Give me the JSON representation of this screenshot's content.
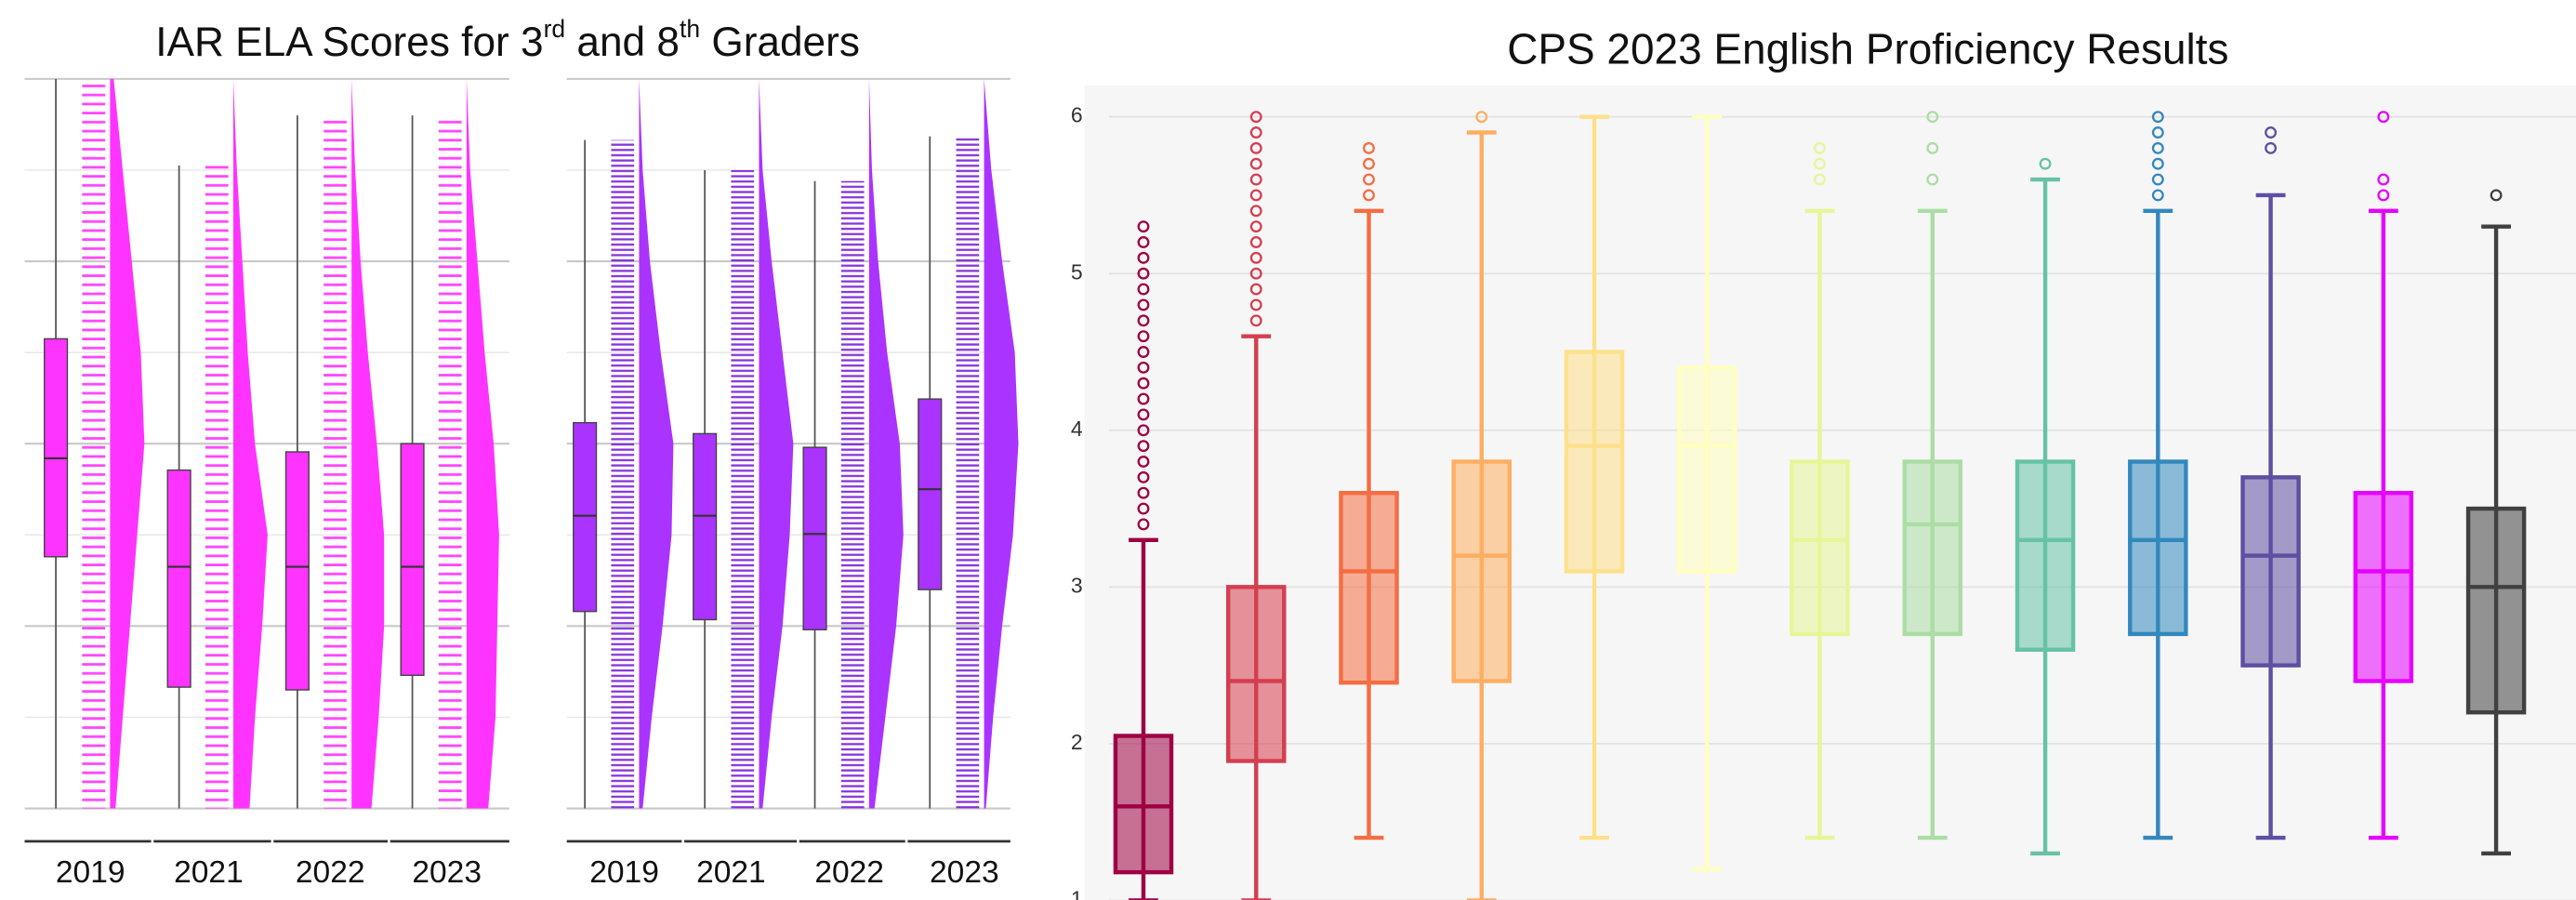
{
  "chart_data": [
    {
      "type": "raincloud",
      "title_runs": [
        {
          "text": "IAR ELA Scores for 3",
          "sup": false
        },
        {
          "text": "rd",
          "sup": true
        },
        {
          "text": " and 8",
          "sup": false
        },
        {
          "text": "th",
          "sup": true
        },
        {
          "text": " Graders",
          "sup": false
        }
      ],
      "categories": [
        "2019",
        "2021",
        "2022",
        "2023"
      ],
      "ylim": [
        0,
        8
      ],
      "yticks": [
        0,
        1,
        2,
        3,
        4,
        5,
        6,
        7,
        8
      ],
      "grid": true,
      "panels": [
        {
          "color": "#ff33ff",
          "boxes": [
            [
              0,
              2.76,
              3.84,
              5.15,
              8
            ],
            [
              0,
              1.33,
              2.65,
              3.71,
              7.05
            ],
            [
              0,
              1.3,
              2.65,
              3.91,
              7.6
            ],
            [
              0,
              1.46,
              2.65,
              4.0,
              7.6
            ]
          ],
          "density": [
            [
              0.15,
              0.35,
              0.55,
              0.75,
              0.95,
              0.85,
              0.6,
              0.35,
              0.1
            ],
            [
              0.45,
              0.6,
              0.8,
              0.95,
              0.6,
              0.4,
              0.25,
              0.1,
              0.0
            ],
            [
              0.55,
              0.75,
              0.9,
              0.9,
              0.7,
              0.45,
              0.25,
              0.1,
              0.0
            ],
            [
              0.6,
              0.8,
              0.85,
              0.9,
              0.75,
              0.5,
              0.3,
              0.1,
              0.0
            ]
          ]
        },
        {
          "color": "#aa33ff",
          "boxes": [
            [
              0,
              2.16,
              3.21,
              4.23,
              7.33
            ],
            [
              0,
              2.07,
              3.21,
              4.11,
              7.0
            ],
            [
              0,
              1.96,
              3.01,
              3.96,
              6.88
            ],
            [
              0,
              2.4,
              3.5,
              4.49,
              7.37
            ]
          ],
          "density": [
            [
              0.1,
              0.35,
              0.65,
              0.9,
              0.95,
              0.6,
              0.3,
              0.1,
              0.0
            ],
            [
              0.1,
              0.35,
              0.65,
              0.85,
              0.95,
              0.65,
              0.35,
              0.1,
              0.0
            ],
            [
              0.15,
              0.45,
              0.75,
              0.95,
              0.85,
              0.5,
              0.25,
              0.08,
              0.0
            ],
            [
              0.05,
              0.25,
              0.5,
              0.8,
              0.95,
              0.85,
              0.5,
              0.2,
              0.0
            ]
          ]
        }
      ]
    },
    {
      "type": "box",
      "title": "CPS 2023 English Proficiency Results",
      "ylim": [
        1,
        6.2
      ],
      "yticks": [
        1,
        2,
        3,
        4,
        5,
        6
      ],
      "grid": true,
      "series": [
        {
          "color": "#9e0142",
          "values": [
            1.0,
            1.18,
            1.6,
            2.05,
            3.3
          ],
          "outliers": [
            3.4,
            3.5,
            3.6,
            3.7,
            3.8,
            3.9,
            4.0,
            4.1,
            4.2,
            4.3,
            4.4,
            4.5,
            4.6,
            4.7,
            4.8,
            4.9,
            5.0,
            5.1,
            5.2,
            5.3
          ]
        },
        {
          "color": "#d53e4f",
          "values": [
            1.0,
            1.89,
            2.4,
            3.0,
            4.6
          ],
          "outliers": [
            4.7,
            4.8,
            4.9,
            5.0,
            5.1,
            5.2,
            5.3,
            5.4,
            5.5,
            5.6,
            5.7,
            5.8,
            5.9,
            6.0
          ]
        },
        {
          "color": "#f46d43",
          "values": [
            1.4,
            2.39,
            3.1,
            3.6,
            5.4
          ],
          "outliers": [
            5.5,
            5.6,
            5.7,
            5.8
          ]
        },
        {
          "color": "#fdae61",
          "values": [
            1.0,
            2.4,
            3.2,
            3.8,
            5.9
          ],
          "outliers": [
            6.0
          ]
        },
        {
          "color": "#fee08b",
          "values": [
            1.4,
            3.1,
            3.9,
            4.5,
            6.0
          ],
          "outliers": []
        },
        {
          "color": "#ffffbf",
          "values": [
            1.2,
            3.1,
            3.9,
            4.4,
            6.0
          ],
          "outliers": []
        },
        {
          "color": "#e6f598",
          "values": [
            1.4,
            2.7,
            3.3,
            3.8,
            5.4
          ],
          "outliers": [
            5.6,
            5.7,
            5.8
          ]
        },
        {
          "color": "#abdda4",
          "values": [
            1.4,
            2.7,
            3.4,
            3.8,
            5.4
          ],
          "outliers": [
            5.6,
            5.8,
            6.0
          ]
        },
        {
          "color": "#66c2a5",
          "values": [
            1.3,
            2.6,
            3.3,
            3.8,
            5.6
          ],
          "outliers": [
            5.7
          ]
        },
        {
          "color": "#3288bd",
          "values": [
            1.4,
            2.7,
            3.3,
            3.8,
            5.4
          ],
          "outliers": [
            5.5,
            5.6,
            5.7,
            5.8,
            5.9,
            6.0
          ]
        },
        {
          "color": "#5e4fa2",
          "values": [
            1.4,
            2.5,
            3.2,
            3.7,
            5.5
          ],
          "outliers": [
            5.8,
            5.9
          ]
        },
        {
          "color": "#e600ff",
          "values": [
            1.4,
            2.4,
            3.1,
            3.6,
            5.4
          ],
          "outliers": [
            5.5,
            5.6,
            6.0
          ]
        },
        {
          "color": "#404040",
          "values": [
            1.3,
            2.2,
            3.0,
            3.5,
            5.3
          ],
          "outliers": [
            5.5
          ]
        }
      ]
    }
  ]
}
